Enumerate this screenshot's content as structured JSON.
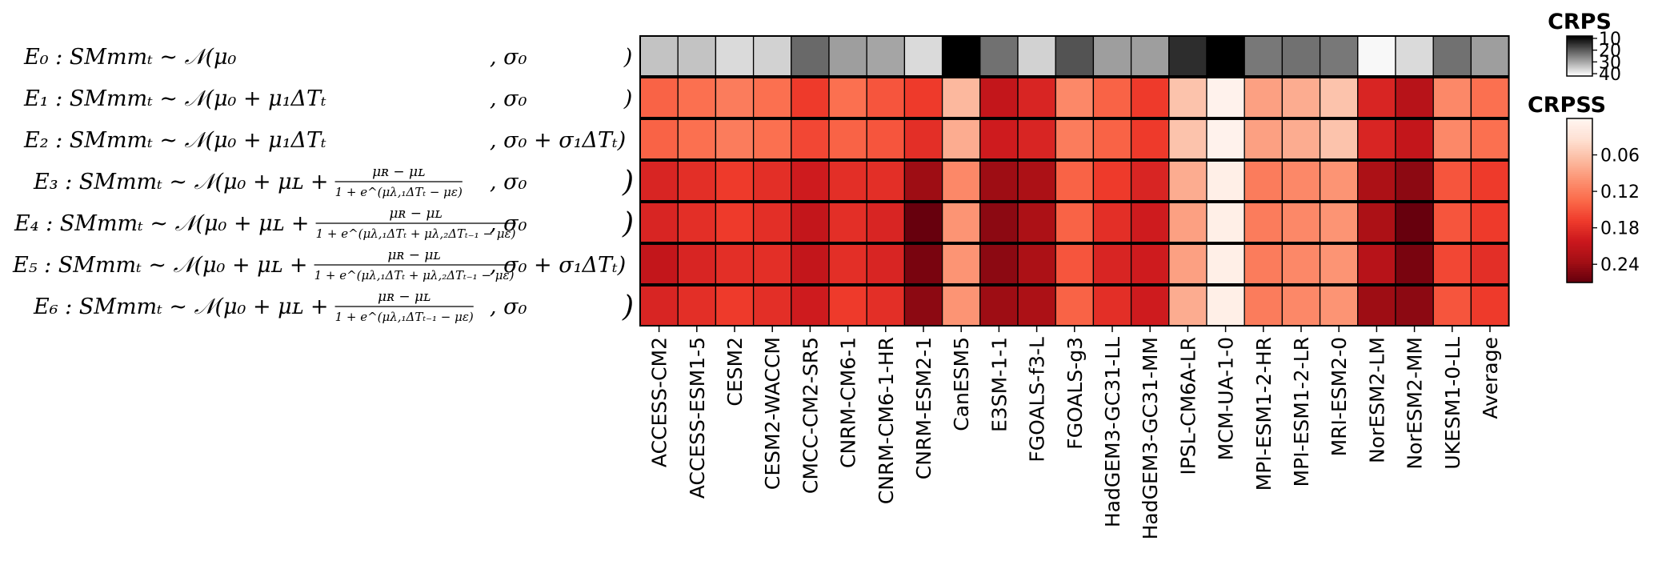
{
  "chart_data": {
    "type": "heatmap",
    "title": "",
    "models": [
      "ACCESS-CM2",
      "ACCESS-ESM1-5",
      "CESM2",
      "CESM2-WACCM",
      "CMCC-CM2-SR5",
      "CNRM-CM6-1",
      "CNRM-CM6-1-HR",
      "CNRM-ESM2-1",
      "CanESM5",
      "E3SM-1-1",
      "FGOALS-f3-L",
      "FGOALS-g3",
      "HadGEM3-GC31-LL",
      "HadGEM3-GC31-MM",
      "IPSL-CM6A-LR",
      "MCM-UA-1-0",
      "MPI-ESM1-2-HR",
      "MPI-ESM1-2-LR",
      "MRI-ESM2-0",
      "NorESM2-LM",
      "NorESM2-MM",
      "UKESM1-0-LL",
      "Average"
    ],
    "equations": [
      {
        "id": "E0",
        "label": "E₀ : SMmmₜ ~ 𝒩(μ₀",
        "mean_terms": "",
        "sigma": ", σ₀",
        "close": ")"
      },
      {
        "id": "E1",
        "label": "E₁ : SMmmₜ ~ 𝒩(μ₀ + μ₁ΔTₜ",
        "mean_terms": "",
        "sigma": ", σ₀",
        "close": ")"
      },
      {
        "id": "E2",
        "label": "E₂ : SMmmₜ ~ 𝒩(μ₀ + μ₁ΔTₜ",
        "mean_terms": "",
        "sigma": ", σ₀ + σ₁ΔTₜ)",
        "close": ""
      },
      {
        "id": "E3",
        "label": "E₃ : SMmmₜ ~ 𝒩(μ₀ + μʟ +",
        "numerator": "μʀ − μʟ",
        "denominator": "1 + e^(μλ,₁ΔTₜ − με)",
        "sigma": ", σ₀",
        "close": ")"
      },
      {
        "id": "E4",
        "label": "E₄ : SMmmₜ ~ 𝒩(μ₀ + μʟ +",
        "numerator": "μʀ − μʟ",
        "denominator": "1 + e^(μλ,₁ΔTₜ + μλ,₂ΔTₜ₋₁ − με)",
        "sigma": ", σ₀",
        "close": ")"
      },
      {
        "id": "E5",
        "label": "E₅ : SMmmₜ ~ 𝒩(μ₀ + μʟ +",
        "numerator": "μʀ − μʟ",
        "denominator": "1 + e^(μλ,₁ΔTₜ + μλ,₂ΔTₜ₋₁ − με)",
        "sigma": ", σ₀ + σ₁ΔTₜ)",
        "close": ""
      },
      {
        "id": "E6",
        "label": "E₆ : SMmmₜ ~ 𝒩(μ₀ + μʟ +",
        "numerator": "μʀ − μʟ",
        "denominator": "1 + e^(μλ,₁ΔTₜ₋₁ − με)",
        "sigma": ", σ₀",
        "close": ")"
      }
    ],
    "crps": {
      "row": "E0",
      "colorbar_title": "CRPS",
      "ticks": [
        "10",
        "20",
        "30",
        "40"
      ],
      "range": [
        8,
        42
      ],
      "values": [
        34,
        34,
        37,
        36,
        22,
        29,
        30,
        37,
        4,
        23,
        36,
        19,
        29,
        29,
        14,
        1,
        24,
        23,
        24,
        41,
        37,
        23,
        29
      ]
    },
    "crpss": {
      "rows": [
        "E1",
        "E2",
        "E3",
        "E4",
        "E5",
        "E6"
      ],
      "colorbar_title": "CRPSS",
      "ticks": [
        "0.06",
        "0.12",
        "0.18",
        "0.24"
      ],
      "range": [
        0.0,
        0.27
      ],
      "values": [
        [
          0.14,
          0.13,
          0.12,
          0.13,
          0.17,
          0.13,
          0.15,
          0.17,
          0.07,
          0.21,
          0.19,
          0.11,
          0.14,
          0.17,
          0.06,
          0.005,
          0.09,
          0.08,
          0.06,
          0.19,
          0.22,
          0.11,
          0.13
        ],
        [
          0.14,
          0.13,
          0.12,
          0.13,
          0.16,
          0.14,
          0.15,
          0.18,
          0.08,
          0.2,
          0.19,
          0.12,
          0.14,
          0.17,
          0.06,
          0.005,
          0.09,
          0.08,
          0.06,
          0.19,
          0.21,
          0.11,
          0.13
        ],
        [
          0.19,
          0.18,
          0.17,
          0.18,
          0.2,
          0.18,
          0.18,
          0.24,
          0.11,
          0.24,
          0.23,
          0.14,
          0.17,
          0.19,
          0.08,
          0.01,
          0.12,
          0.11,
          0.1,
          0.23,
          0.25,
          0.15,
          0.17
        ],
        [
          0.19,
          0.18,
          0.17,
          0.18,
          0.21,
          0.18,
          0.19,
          0.27,
          0.1,
          0.25,
          0.23,
          0.14,
          0.18,
          0.2,
          0.09,
          0.01,
          0.12,
          0.11,
          0.1,
          0.23,
          0.27,
          0.15,
          0.17
        ],
        [
          0.21,
          0.19,
          0.18,
          0.18,
          0.21,
          0.18,
          0.19,
          0.26,
          0.1,
          0.25,
          0.23,
          0.15,
          0.19,
          0.2,
          0.09,
          0.01,
          0.12,
          0.11,
          0.1,
          0.22,
          0.26,
          0.16,
          0.18
        ],
        [
          0.19,
          0.18,
          0.17,
          0.18,
          0.2,
          0.17,
          0.18,
          0.25,
          0.1,
          0.24,
          0.23,
          0.14,
          0.18,
          0.2,
          0.08,
          0.01,
          0.12,
          0.11,
          0.1,
          0.24,
          0.25,
          0.15,
          0.17
        ]
      ]
    }
  }
}
